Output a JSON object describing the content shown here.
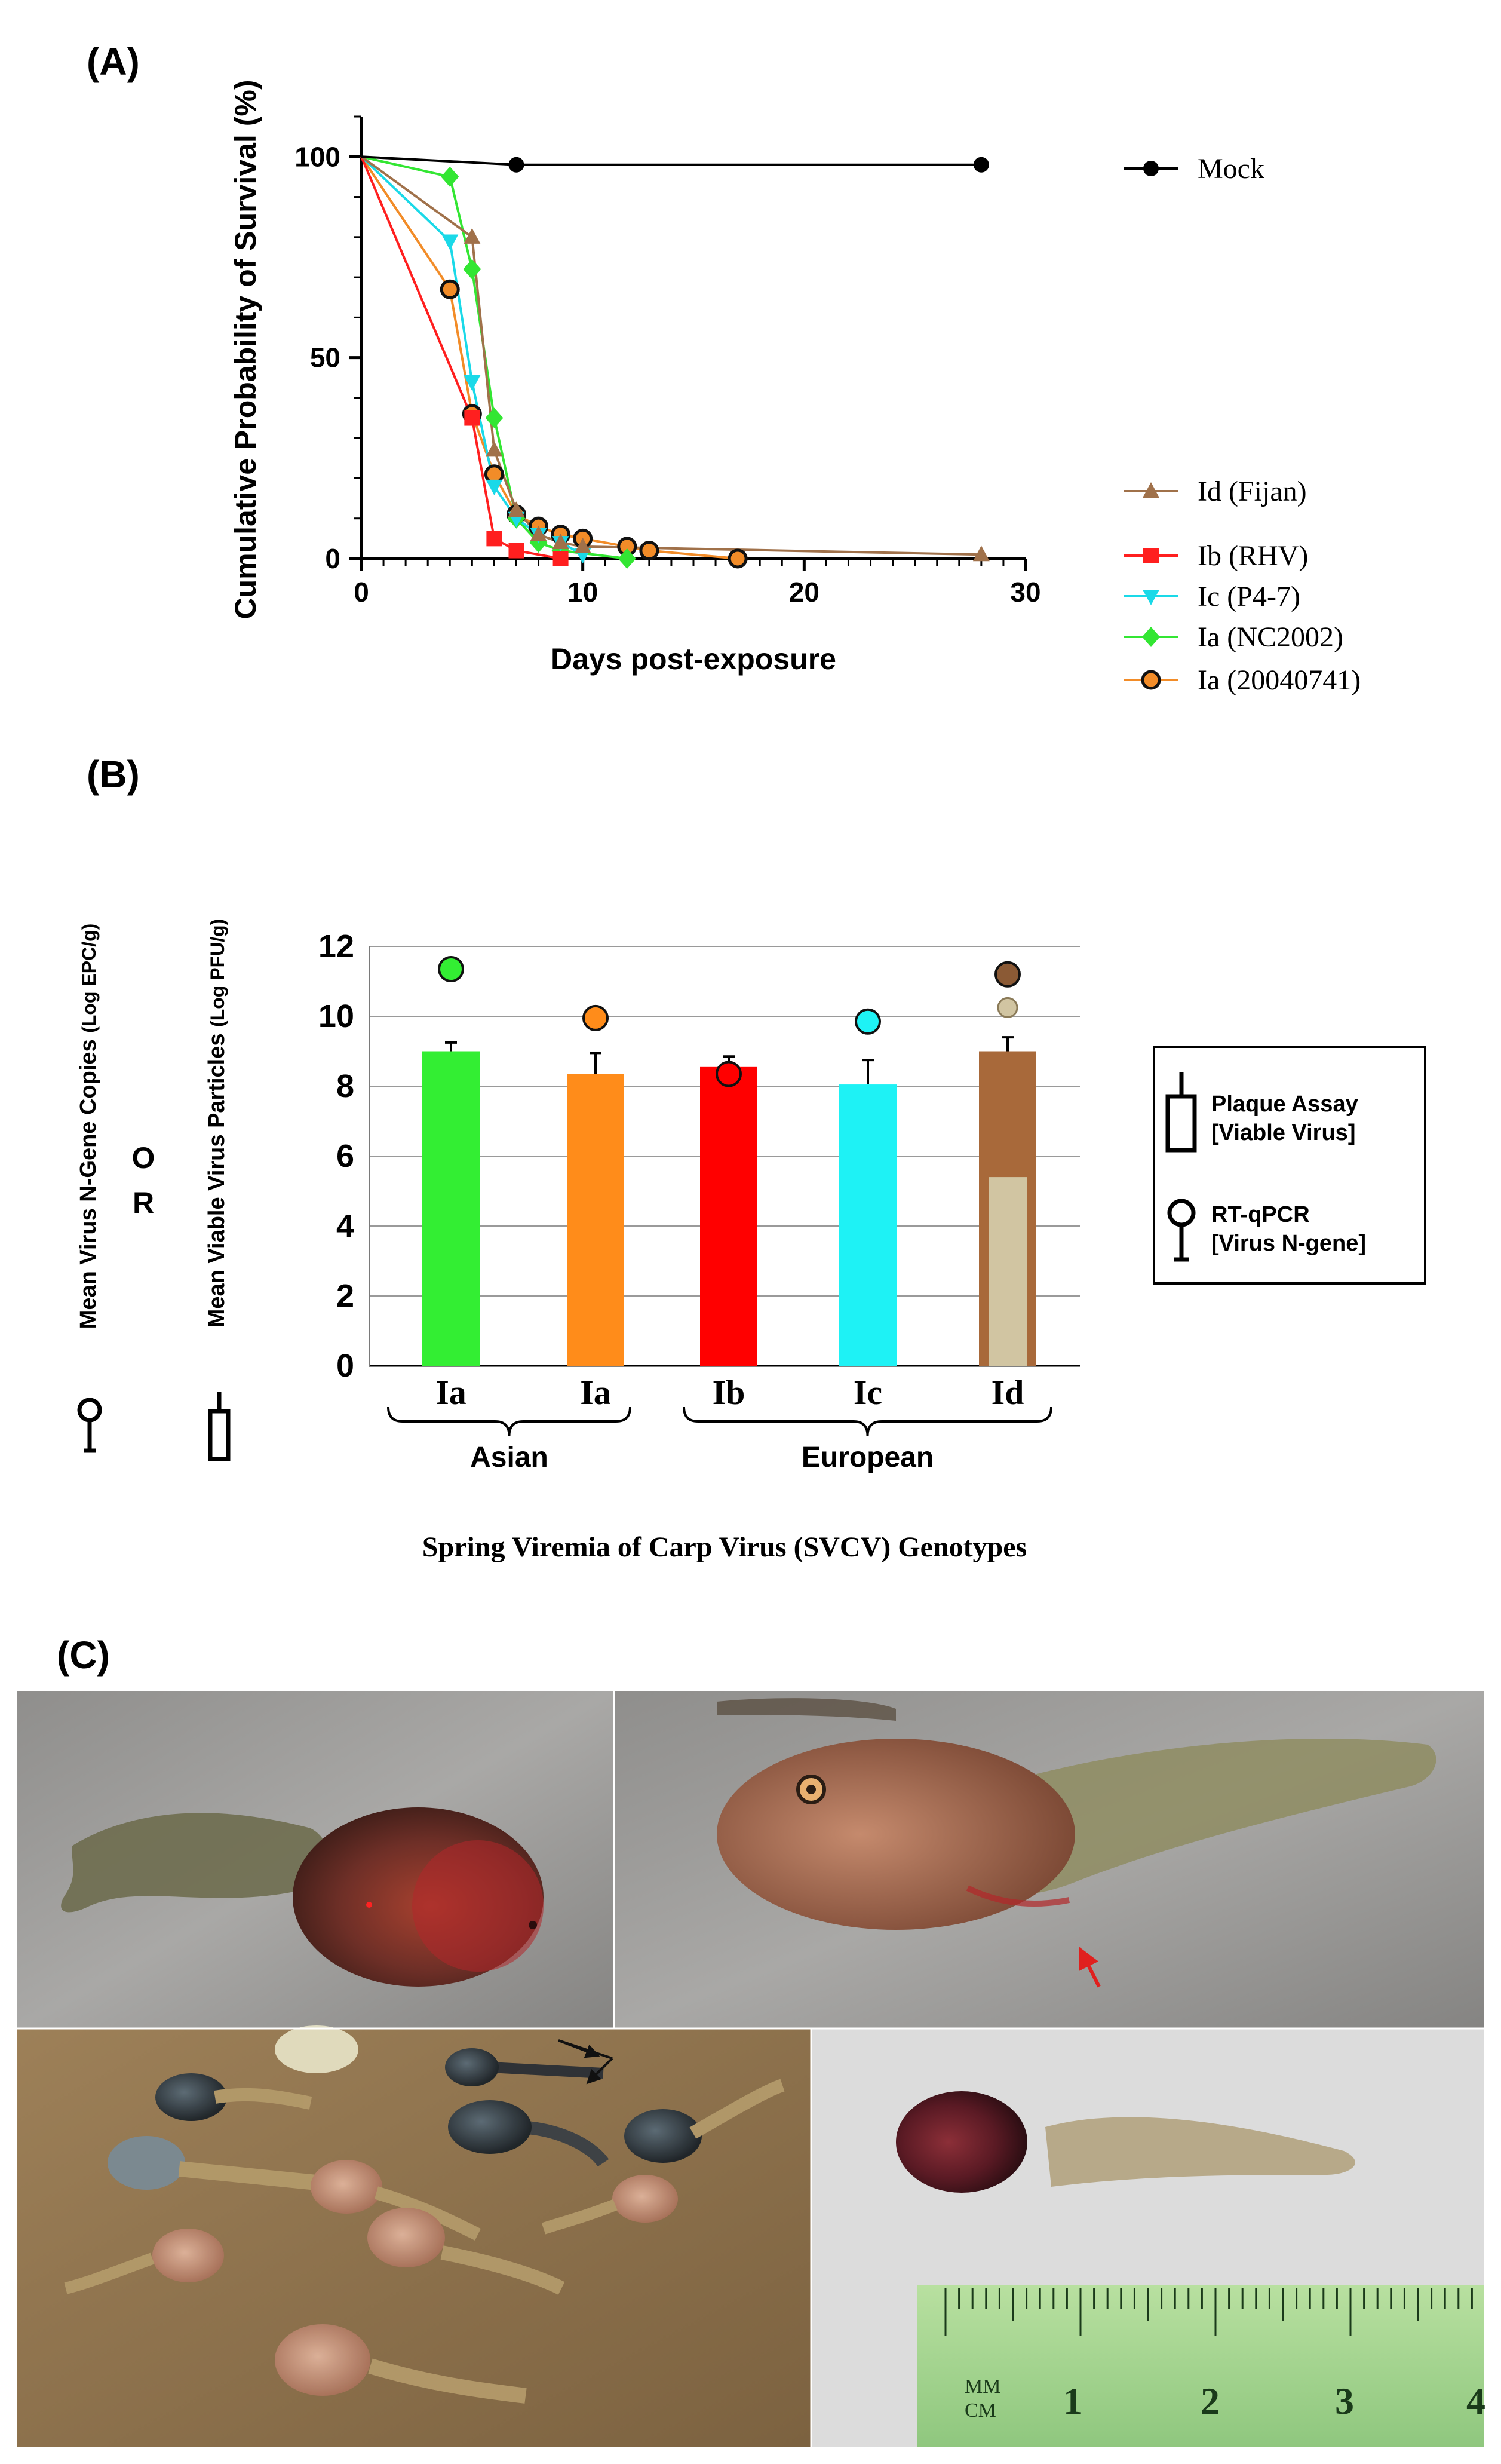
{
  "panels": {
    "a": "(A)",
    "b": "(B)",
    "c": "(C)"
  },
  "chart_data": [
    {
      "type": "line",
      "title": "",
      "xlabel": "Days post-exposure",
      "ylabel": "Cumulative Probability of Survival (%)",
      "xlim": [
        0,
        30
      ],
      "ylim": [
        0,
        110
      ],
      "x_ticks": [
        "0",
        "10",
        "20",
        "30"
      ],
      "y_ticks": [
        "0",
        "50",
        "100"
      ],
      "series": [
        {
          "name": "Mock",
          "color": "#000000",
          "marker": "circle",
          "points": [
            [
              0,
              100
            ],
            [
              7,
              98
            ],
            [
              28,
              98
            ]
          ]
        },
        {
          "name": "Id (Fijan)",
          "color": "#a0714a",
          "marker": "triangle-up",
          "points": [
            [
              0,
              100
            ],
            [
              5,
              80
            ],
            [
              6,
              27
            ],
            [
              7,
              12
            ],
            [
              8,
              6
            ],
            [
              9,
              4
            ],
            [
              10,
              3
            ],
            [
              28,
              1
            ]
          ]
        },
        {
          "name": "Ib (RHV)",
          "color": "#ff1f1f",
          "marker": "square",
          "points": [
            [
              0,
              100
            ],
            [
              5,
              35
            ],
            [
              6,
              5
            ],
            [
              7,
              2
            ],
            [
              9,
              0
            ]
          ]
        },
        {
          "name": "Ic (P4-7)",
          "color": "#1ad9e8",
          "marker": "triangle-down",
          "points": [
            [
              0,
              100
            ],
            [
              4,
              79
            ],
            [
              5,
              44
            ],
            [
              6,
              18
            ],
            [
              7,
              10
            ],
            [
              8,
              6
            ],
            [
              9,
              4
            ],
            [
              10,
              1
            ]
          ]
        },
        {
          "name": "Ia (NC2002)",
          "color": "#33e633",
          "marker": "diamond",
          "points": [
            [
              0,
              100
            ],
            [
              4,
              95
            ],
            [
              5,
              72
            ],
            [
              6,
              35
            ],
            [
              7,
              10
            ],
            [
              8,
              4
            ],
            [
              9,
              2
            ],
            [
              12,
              0
            ]
          ]
        },
        {
          "name": "Ia (20040741)",
          "color": "#f28c28",
          "marker": "circle-outlined",
          "points": [
            [
              0,
              100
            ],
            [
              4,
              67
            ],
            [
              5,
              36
            ],
            [
              6,
              21
            ],
            [
              7,
              11
            ],
            [
              8,
              8
            ],
            [
              9,
              6
            ],
            [
              10,
              5
            ],
            [
              12,
              3
            ],
            [
              13,
              2
            ],
            [
              17,
              0
            ]
          ]
        }
      ],
      "legend": [
        "Mock",
        "Id (Fijan)",
        "Ib (RHV)",
        "Ic (P4-7)",
        "Ia (NC2002)",
        "Ia (20040741)"
      ]
    },
    {
      "type": "bar",
      "xlabel": "Spring Viremia of Carp Virus (SVCV) Genotypes",
      "ylabel_left": "Mean Virus N-Gene Copies",
      "ylabel_left_unit": "(Log EPC/g)",
      "ylabel_right": "Mean Viable Virus Particles",
      "ylabel_right_unit": "(Log PFU/g)",
      "ylabel_or": [
        "O",
        "R"
      ],
      "ylim": [
        0,
        12
      ],
      "y_ticks": [
        "0",
        "2",
        "4",
        "6",
        "8",
        "10",
        "12"
      ],
      "categories": [
        "Ia",
        "Ia",
        "Ib",
        "Ic",
        "Id"
      ],
      "groups": [
        {
          "label": "Asian",
          "from": 0,
          "to": 1
        },
        {
          "label": "European",
          "from": 2,
          "to": 4
        }
      ],
      "plaque_assay_values": [
        9.0,
        8.35,
        8.55,
        8.05,
        9.0
      ],
      "plaque_assay_errors": [
        0.25,
        0.6,
        0.3,
        0.7,
        0.4
      ],
      "rtqpcr_values": [
        11.35,
        9.95,
        8.35,
        9.85,
        11.2
      ],
      "extra_points": [
        {
          "category_index": 4,
          "value": 10.25
        }
      ],
      "inner_bar": {
        "category_index": 4,
        "value": 5.4
      },
      "colors": [
        "#33ee33",
        "#ff8c1a",
        "#ff0000",
        "#1ef2f5",
        "#a8693a"
      ],
      "legend": {
        "plaque_line1": "Plaque Assay",
        "plaque_line2": "[Viable Virus]",
        "rt_line1": "RT-qPCR",
        "rt_line2": "[Virus N-gene]"
      }
    }
  ],
  "photos": {
    "ruler_units_top": "MM",
    "ruler_units_bottom": "CM",
    "ruler_numbers": [
      "1",
      "2",
      "3",
      "4"
    ]
  }
}
